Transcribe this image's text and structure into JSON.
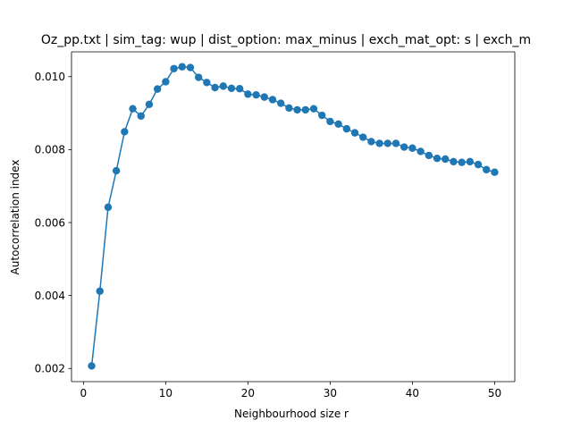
{
  "chart_data": {
    "type": "line",
    "title": "Oz_pp.txt | sim_tag: wup | dist_option: max_minus | exch_mat_opt: s | exch_m",
    "xlabel": "Neighbourhood size r",
    "ylabel": "Autocorrelation index",
    "xlim": [
      -1.45,
      52.45
    ],
    "ylim": [
      0.00164,
      0.01068
    ],
    "xticks": [
      0,
      10,
      20,
      30,
      40,
      50
    ],
    "xtick_labels": [
      "0",
      "10",
      "20",
      "30",
      "40",
      "50"
    ],
    "yticks": [
      0.002,
      0.004,
      0.006,
      0.008,
      0.01
    ],
    "ytick_labels": [
      "0.002",
      "0.004",
      "0.006",
      "0.008",
      "0.010"
    ],
    "grid": false,
    "color": "#1f77b4",
    "series": [
      {
        "marker": "circle",
        "x": [
          1,
          2,
          3,
          4,
          5,
          6,
          7,
          8,
          9,
          10,
          11,
          12,
          13,
          14,
          15,
          16,
          17,
          18,
          19,
          20,
          21,
          22,
          23,
          24,
          25,
          26,
          27,
          28,
          29,
          30,
          31,
          32,
          33,
          34,
          35,
          36,
          37,
          38,
          39,
          40,
          41,
          42,
          43,
          44,
          45,
          46,
          47,
          48,
          49,
          50
        ],
        "y": [
          0.00207,
          0.00412,
          0.00642,
          0.00742,
          0.00849,
          0.00912,
          0.00892,
          0.00924,
          0.00966,
          0.00986,
          0.01022,
          0.01027,
          0.01025,
          0.00998,
          0.00984,
          0.0097,
          0.00974,
          0.00968,
          0.00967,
          0.00952,
          0.0095,
          0.00944,
          0.00937,
          0.00927,
          0.00914,
          0.00909,
          0.00909,
          0.00912,
          0.00894,
          0.00877,
          0.0087,
          0.00857,
          0.00846,
          0.00834,
          0.00822,
          0.00817,
          0.00817,
          0.00817,
          0.00807,
          0.00804,
          0.00795,
          0.00784,
          0.00776,
          0.00774,
          0.00767,
          0.00765,
          0.00767,
          0.00759,
          0.00745,
          0.00738
        ]
      }
    ]
  }
}
